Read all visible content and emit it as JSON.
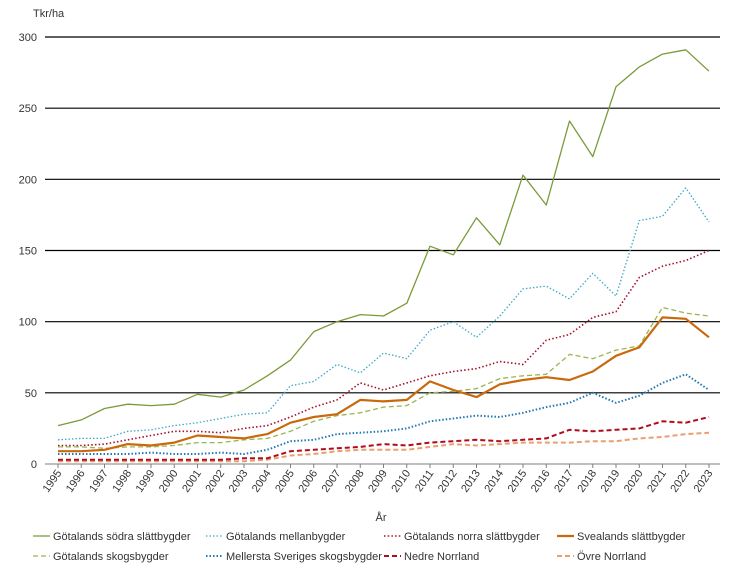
{
  "chart_data": {
    "type": "line",
    "ylabel": "Tkr/ha",
    "xlabel": "År",
    "ylim": [
      0,
      300
    ],
    "yticks": [
      0,
      50,
      100,
      150,
      200,
      250,
      300
    ],
    "grid": "horizontal",
    "legend_position": "bottom",
    "categories": [
      "1995",
      "1996",
      "1997",
      "1998",
      "1999",
      "2000",
      "2001",
      "2002",
      "2003",
      "2004",
      "2005",
      "2006",
      "2007",
      "2008",
      "2009",
      "2010",
      "2011",
      "2012",
      "2013",
      "2014",
      "2015",
      "2016",
      "2017",
      "2018",
      "2019",
      "2020",
      "2021",
      "2022",
      "2023"
    ],
    "series": [
      {
        "name": "Götalands södra slättbygder",
        "color": "#7a9a3a",
        "dash": "solid",
        "width": 1.3,
        "values": [
          27,
          31,
          39,
          42,
          41,
          42,
          49,
          47,
          52,
          62,
          73,
          93,
          100,
          105,
          104,
          113,
          153,
          147,
          173,
          154,
          203,
          182,
          241,
          216,
          265,
          279,
          288,
          291,
          276
        ]
      },
      {
        "name": "Götalands mellanbygder",
        "color": "#3fa7c9",
        "dash": "dot",
        "width": 1.3,
        "values": [
          17,
          18,
          18,
          23,
          24,
          27,
          29,
          32,
          35,
          36,
          55,
          58,
          70,
          64,
          78,
          74,
          94,
          100,
          89,
          104,
          123,
          125,
          116,
          134,
          118,
          171,
          174,
          194,
          170
        ]
      },
      {
        "name": "Götalands norra slättbygder",
        "color": "#a80e2a",
        "dash": "densedot",
        "width": 1.6,
        "values": [
          13,
          13,
          14,
          17,
          20,
          23,
          23,
          22,
          25,
          27,
          33,
          40,
          45,
          57,
          52,
          57,
          62,
          65,
          67,
          72,
          70,
          87,
          91,
          103,
          107,
          131,
          139,
          143,
          150
        ]
      },
      {
        "name": "Svealands slättbygder",
        "color": "#c9690b",
        "dash": "solid",
        "width": 2.2,
        "values": [
          9,
          9,
          10,
          14,
          13,
          15,
          20,
          19,
          18,
          21,
          29,
          33,
          35,
          45,
          44,
          45,
          58,
          52,
          47,
          56,
          59,
          61,
          59,
          65,
          76,
          82,
          103,
          102,
          89
        ]
      },
      {
        "name": "Götalands skogsbygder",
        "color": "#9ab54f",
        "dash": "dash",
        "width": 1.3,
        "values": [
          12,
          12,
          11,
          12,
          12,
          13,
          15,
          15,
          17,
          18,
          23,
          30,
          34,
          36,
          40,
          41,
          50,
          51,
          53,
          60,
          62,
          63,
          77,
          74,
          80,
          83,
          110,
          106,
          104
        ]
      },
      {
        "name": "Mellersta Sveriges skogsbygder",
        "color": "#1f78b4",
        "dash": "dot",
        "width": 2.0,
        "values": [
          7,
          7,
          7,
          7,
          8,
          7,
          7,
          8,
          7,
          10,
          16,
          17,
          21,
          22,
          23,
          25,
          30,
          32,
          34,
          33,
          36,
          40,
          43,
          50,
          43,
          48,
          57,
          63,
          52
        ]
      },
      {
        "name": "Nedre Norrland",
        "color": "#b10b1d",
        "dash": "dash",
        "width": 2.0,
        "values": [
          3,
          3,
          3,
          3,
          3,
          3,
          3,
          3,
          4,
          4,
          9,
          10,
          11,
          12,
          14,
          13,
          15,
          16,
          17,
          16,
          17,
          18,
          24,
          23,
          24,
          25,
          30,
          29,
          33
        ]
      },
      {
        "name": "Övre Norrland",
        "color": "#e8a070",
        "dash": "dash",
        "width": 2.0,
        "values": [
          2,
          2,
          2,
          2,
          2,
          2,
          2,
          2,
          2,
          3,
          6,
          7,
          9,
          10,
          10,
          10,
          12,
          14,
          13,
          14,
          15,
          15,
          15,
          16,
          16,
          18,
          19,
          21,
          22
        ]
      }
    ]
  }
}
